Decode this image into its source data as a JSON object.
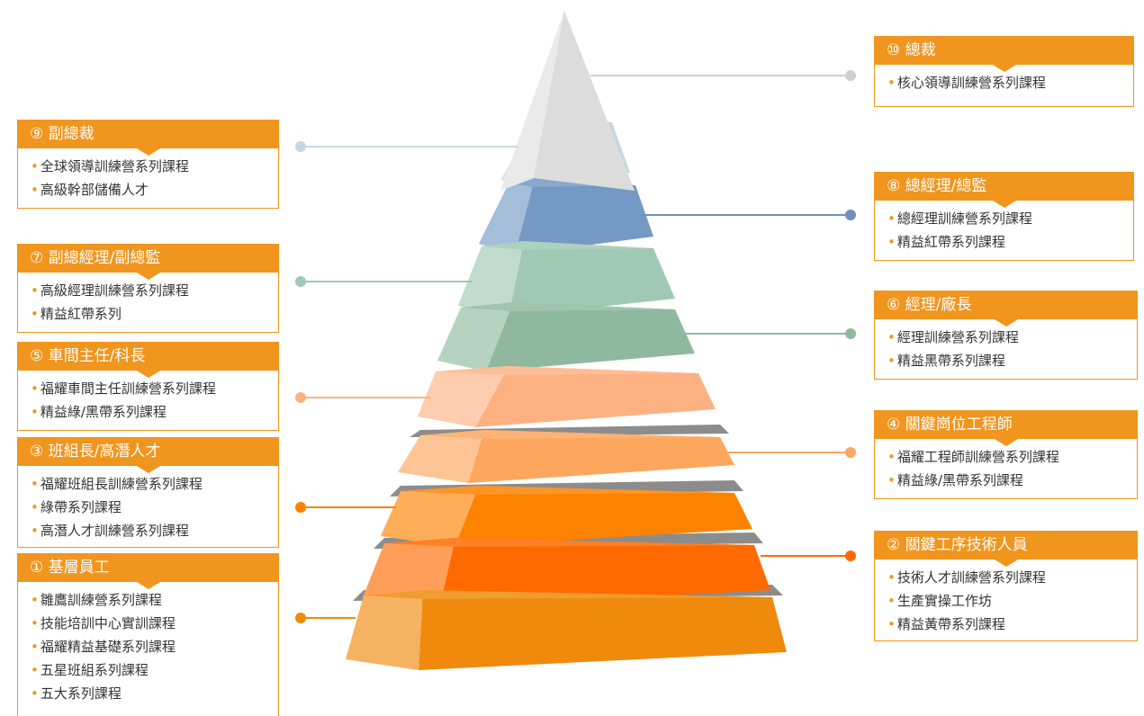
{
  "levels": [
    {
      "id": "10",
      "title": "⑩ 總裁",
      "items": [
        "核心領導訓練營系列課程"
      ]
    },
    {
      "id": "9",
      "title": "⑨ 副總裁",
      "items": [
        "全球領導訓練營系列課程",
        "高級幹部儲備人才"
      ]
    },
    {
      "id": "8",
      "title": "⑧ 總經理/總監",
      "items": [
        "總經理訓練營系列課程",
        "精益紅帶系列課程"
      ]
    },
    {
      "id": "7",
      "title": "⑦ 副總經理/副總監",
      "items": [
        "高級經理訓練營系列課程",
        "精益紅帶系列"
      ]
    },
    {
      "id": "6",
      "title": "⑥ 經理/廠長",
      "items": [
        "經理訓練營系列課程",
        "精益黑帶系列課程"
      ]
    },
    {
      "id": "5",
      "title": "⑤ 車間主任/科長",
      "items": [
        "福耀車間主任訓練營系列課程",
        "精益綠/黑帶系列課程"
      ]
    },
    {
      "id": "4",
      "title": "④ 關鍵崗位工程師",
      "items": [
        "福耀工程師訓練營系列課程",
        "精益綠/黑帶系列課程"
      ]
    },
    {
      "id": "3",
      "title": "③ 班組長/高潛人才",
      "items": [
        "福耀班組長訓練營系列課程",
        "綠帶系列課程",
        "高潛人才訓練營系列課程"
      ]
    },
    {
      "id": "2",
      "title": "② 關鍵工序技術人員",
      "items": [
        "技術人才訓練營系列課程",
        "生產實操工作坊",
        "精益黃帶系列課程"
      ]
    },
    {
      "id": "1",
      "title": "① 基層員工",
      "items": [
        "雛鷹訓練營系列課程",
        "技能培訓中心實訓課程",
        "福耀精益基礎系列課程",
        "五星班組系列課程",
        "五大系列課程"
      ]
    }
  ],
  "colors": {
    "accent": "#f0951e",
    "tier10": "#dcdcdc",
    "tier9": "#c5d8df",
    "tier8": "#7399c4",
    "tier7": "#9fc9b4",
    "tier6": "#8fb99e",
    "tier5": "#fdb183",
    "tier4": "#fca65e",
    "tier3": "#fd8200",
    "tier2": "#ff6a00",
    "tier1": "#ef8a0c"
  }
}
